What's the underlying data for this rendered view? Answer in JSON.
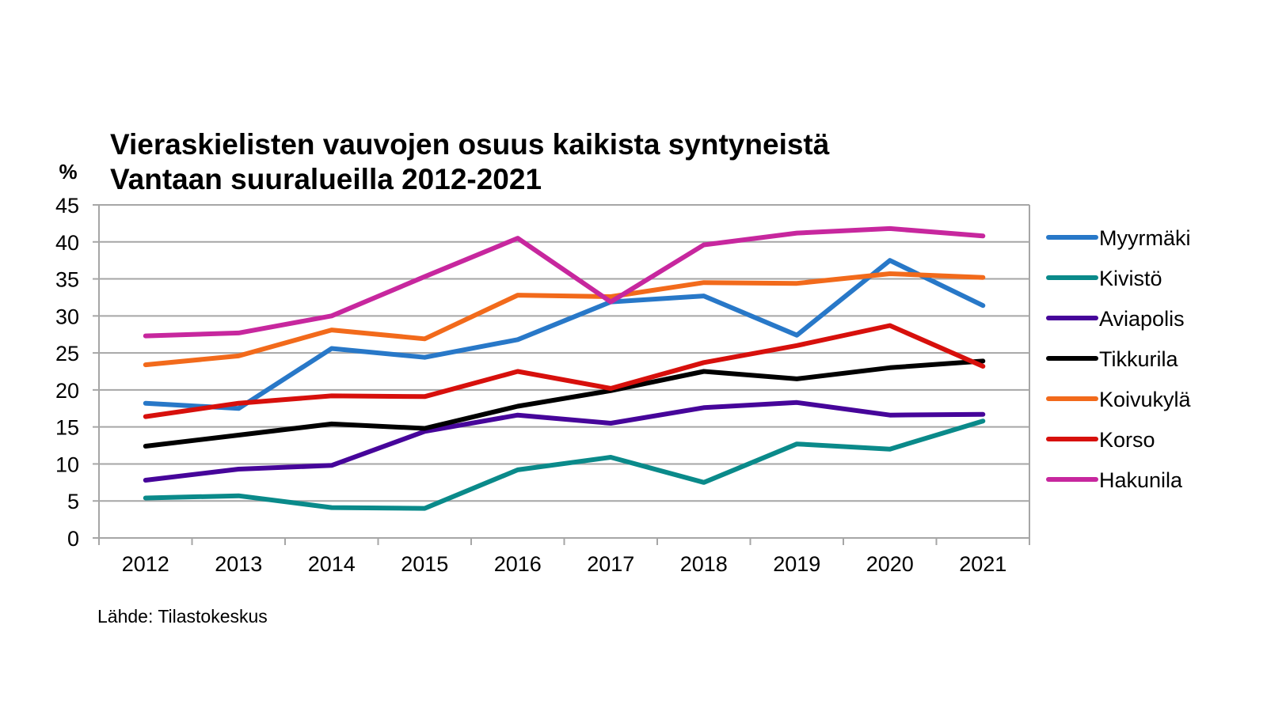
{
  "chart_data": {
    "type": "line",
    "title": "Vieraskielisten vauvojen osuus kaikista syntyneistä Vantaan suuralueilla 2012-2021",
    "title_lines": [
      "Vieraskielisten vauvojen osuus kaikista syntyneistä",
      "Vantaan suuralueilla 2012-2021"
    ],
    "ylabel": "%",
    "xlabel": "",
    "ylim": [
      0,
      45
    ],
    "ytick_step": 5,
    "yticks": [
      "0",
      "5",
      "10",
      "15",
      "20",
      "25",
      "30",
      "35",
      "40",
      "45"
    ],
    "grid": true,
    "legend_position": "right",
    "categories": [
      "2012",
      "2013",
      "2014",
      "2015",
      "2016",
      "2017",
      "2018",
      "2019",
      "2020",
      "2021"
    ],
    "series": [
      {
        "name": "Myyrmäki",
        "color": "#2878c8",
        "values": [
          18.2,
          17.5,
          25.6,
          24.4,
          26.8,
          31.9,
          32.7,
          27.4,
          37.5,
          31.4
        ]
      },
      {
        "name": "Kivistö",
        "color": "#0a8a8a",
        "values": [
          5.4,
          5.7,
          4.1,
          4.0,
          9.2,
          10.9,
          7.5,
          12.7,
          12.0,
          15.8
        ]
      },
      {
        "name": "Aviapolis",
        "color": "#46059a",
        "values": [
          7.8,
          9.3,
          9.8,
          14.4,
          16.6,
          15.5,
          17.6,
          18.3,
          16.6,
          16.7
        ]
      },
      {
        "name": "Tikkurila",
        "color": "#000000",
        "values": [
          12.4,
          13.9,
          15.4,
          14.8,
          17.8,
          19.9,
          22.5,
          21.5,
          23.0,
          23.9
        ]
      },
      {
        "name": "Koivukylä",
        "color": "#f26a1b",
        "values": [
          23.4,
          24.6,
          28.1,
          26.9,
          32.8,
          32.6,
          34.5,
          34.4,
          35.7,
          35.2
        ]
      },
      {
        "name": "Korso",
        "color": "#d7100c",
        "values": [
          16.4,
          18.2,
          19.2,
          19.1,
          22.5,
          20.2,
          23.7,
          26.0,
          28.7,
          23.2
        ]
      },
      {
        "name": "Hakunila",
        "color": "#c7279e",
        "values": [
          27.3,
          27.7,
          30.0,
          35.3,
          40.5,
          31.9,
          39.6,
          41.2,
          41.8,
          40.8
        ]
      }
    ],
    "source": "Lähde: Tilastokeskus"
  }
}
